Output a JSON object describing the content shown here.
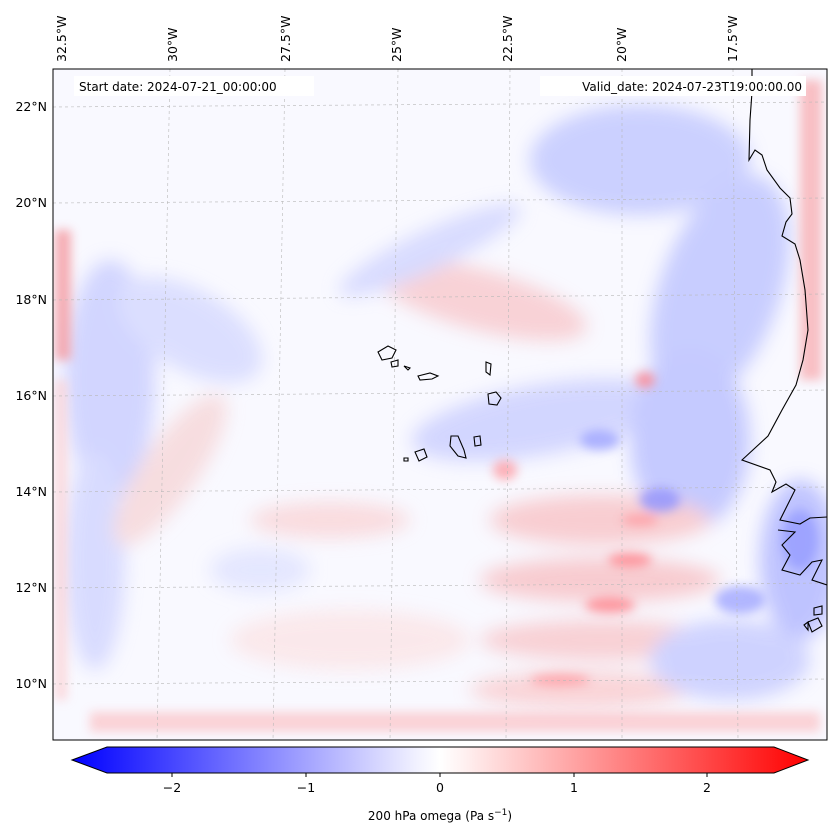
{
  "map": {
    "start_date": "Start date: 2024-07-21_00:00:00",
    "valid_date": "Valid_date: 2024-07-23T19:00:00.00",
    "lon_labels": [
      "32.5°W",
      "30°W",
      "27.5°W",
      "25°W",
      "22.5°W",
      "20°W",
      "17.5°W"
    ],
    "lat_labels": [
      "22°N",
      "20°N",
      "18°N",
      "16°N",
      "14°N",
      "12°N",
      "10°N"
    ],
    "colors": {
      "negative": "#0000ff",
      "neutral": "#ffffff",
      "positive": "#ff0000",
      "coastline": "#000000",
      "gridline": "#b0b0b0"
    }
  },
  "colorbar": {
    "ticks": [
      "−2",
      "−1",
      "0",
      "1",
      "2"
    ],
    "label": "200 hPa omega (Pa s",
    "label_exp": "−1",
    "label_end": ")",
    "range": [
      -2.6,
      2.6
    ]
  }
}
